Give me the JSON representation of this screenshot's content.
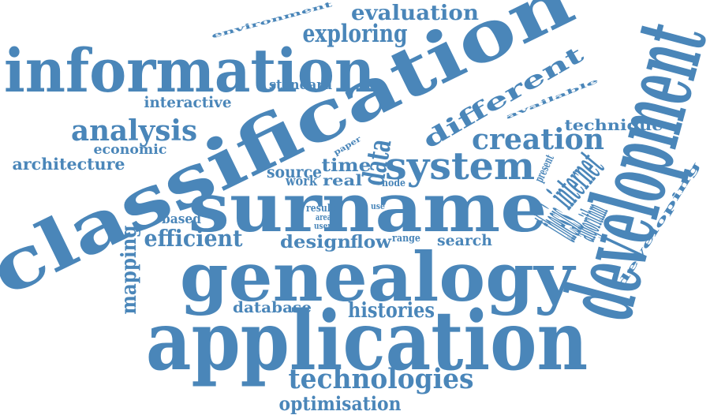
{
  "color": "#4a86b9",
  "words": [
    {
      "text": "environment"
    },
    {
      "text": "evaluation"
    },
    {
      "text": "exploring"
    },
    {
      "text": "information"
    },
    {
      "text": "classification"
    },
    {
      "text": "standard"
    },
    {
      "text": "interactive"
    },
    {
      "text": "different"
    },
    {
      "text": "available"
    },
    {
      "text": "development"
    },
    {
      "text": "analysis"
    },
    {
      "text": "technique"
    },
    {
      "text": "economic"
    },
    {
      "text": "creation"
    },
    {
      "text": "paper"
    },
    {
      "text": "architecture"
    },
    {
      "text": "source"
    },
    {
      "text": "time"
    },
    {
      "text": "data"
    },
    {
      "text": "system"
    },
    {
      "text": "present"
    },
    {
      "text": "internet"
    },
    {
      "text": "work"
    },
    {
      "text": "real"
    },
    {
      "text": "node"
    },
    {
      "text": "developing"
    },
    {
      "text": "surname"
    },
    {
      "text": "result"
    },
    {
      "text": "use"
    },
    {
      "text": "area"
    },
    {
      "text": "user"
    },
    {
      "text": "thesis"
    },
    {
      "text": "algorithm"
    },
    {
      "text": "based"
    },
    {
      "text": "efficient"
    },
    {
      "text": "mapping"
    },
    {
      "text": "design"
    },
    {
      "text": "flow"
    },
    {
      "text": "range"
    },
    {
      "text": "search"
    },
    {
      "text": "genealogy"
    },
    {
      "text": "database"
    },
    {
      "text": "histories"
    },
    {
      "text": "application"
    },
    {
      "text": "technologies"
    },
    {
      "text": "optimisation"
    }
  ]
}
